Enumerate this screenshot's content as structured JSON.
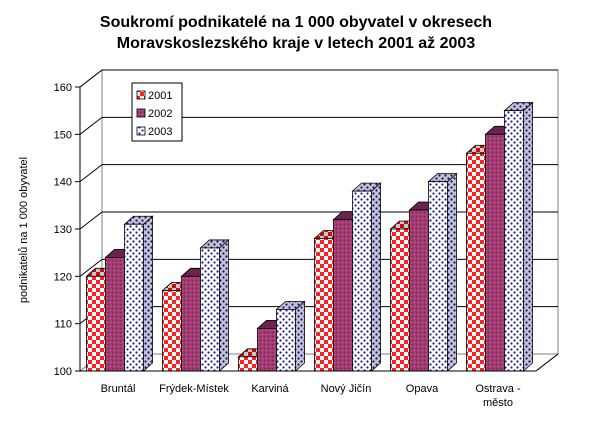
{
  "chart_data": {
    "type": "bar",
    "title_lines": [
      "Soukromí podnikatelé na 1 000 obyvatel v okresech",
      "Moravskoslezského kraje v letech 2001 až 2003"
    ],
    "ylabel": "podnikatelů na 1 000 obyvatel",
    "xlabel": "",
    "ylim": [
      100,
      160
    ],
    "yticks": [
      100,
      110,
      120,
      130,
      140,
      150,
      160
    ],
    "grid": true,
    "legend_position": "top-left",
    "categories": [
      [
        "Bruntál"
      ],
      [
        "Frýdek-Místek"
      ],
      [
        "Karviná"
      ],
      [
        "Nový Jičín"
      ],
      [
        "Opava"
      ],
      [
        "Ostrava -",
        "město"
      ]
    ],
    "series": [
      {
        "name": "2001",
        "color": "#ff2a2a",
        "values": [
          120,
          117,
          103,
          128,
          130,
          146
        ]
      },
      {
        "name": "2002",
        "color": "#993366",
        "values": [
          124,
          120,
          109,
          132,
          134,
          150
        ]
      },
      {
        "name": "2003",
        "color": "#7a7ab8",
        "values": [
          131,
          126,
          113,
          138,
          140,
          155
        ]
      }
    ]
  }
}
